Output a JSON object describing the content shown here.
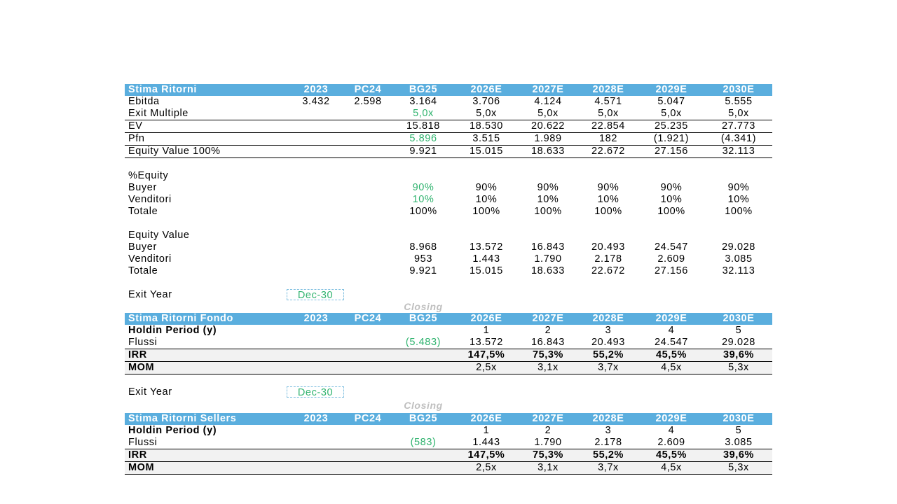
{
  "cols": [
    "2023",
    "PC24",
    "BG25",
    "2026E",
    "2027E",
    "2028E",
    "2029E",
    "2030E"
  ],
  "s1": {
    "title": "Stima Ritorni",
    "ebitda": {
      "label": "Ebitda",
      "v": [
        "3.432",
        "2.598",
        "3.164",
        "3.706",
        "4.124",
        "4.571",
        "5.047",
        "5.555"
      ]
    },
    "multiple": {
      "label": "Exit Multiple",
      "v": [
        "5,0x",
        "5,0x",
        "5,0x",
        "5,0x",
        "5,0x",
        "5,0x"
      ]
    },
    "ev": {
      "label": "EV",
      "v": [
        "15.818",
        "18.530",
        "20.622",
        "22.854",
        "25.235",
        "27.773"
      ]
    },
    "pfn": {
      "label": "Pfn",
      "v": [
        "5.896",
        "3.515",
        "1.989",
        "182",
        "(1.921)",
        "(4.341)"
      ]
    },
    "equity100": {
      "label": "Equity Value 100%",
      "v": [
        "9.921",
        "15.015",
        "18.633",
        "22.672",
        "27.156",
        "32.113"
      ]
    },
    "pct_title": "%Equity",
    "pct_buyer": {
      "label": "Buyer",
      "v": [
        "90%",
        "90%",
        "90%",
        "90%",
        "90%",
        "90%"
      ]
    },
    "pct_vend": {
      "label": "Venditori",
      "v": [
        "10%",
        "10%",
        "10%",
        "10%",
        "10%",
        "10%"
      ]
    },
    "pct_tot": {
      "label": "Totale",
      "v": [
        "100%",
        "100%",
        "100%",
        "100%",
        "100%",
        "100%"
      ]
    },
    "eq_title": "Equity Value",
    "eq_buyer": {
      "label": "Buyer",
      "v": [
        "8.968",
        "13.572",
        "16.843",
        "20.493",
        "24.547",
        "29.028"
      ]
    },
    "eq_vend": {
      "label": "Venditori",
      "v": [
        "953",
        "1.443",
        "1.790",
        "2.178",
        "2.609",
        "3.085"
      ]
    },
    "eq_tot": {
      "label": "Totale",
      "v": [
        "9.921",
        "15.015",
        "18.633",
        "22.672",
        "27.156",
        "32.113"
      ]
    }
  },
  "s2": {
    "exit_label": "Exit Year",
    "exit_value": "Dec-30",
    "closing": "Closing",
    "title": "Stima Ritorni Fondo",
    "holding": {
      "label": "Holdin Period (y)",
      "v": [
        "1",
        "2",
        "3",
        "4",
        "5"
      ]
    },
    "flussi": {
      "label": "Flussi",
      "v": [
        "(5.483)",
        "13.572",
        "16.843",
        "20.493",
        "24.547",
        "29.028"
      ]
    },
    "irr": {
      "label": "IRR",
      "v": [
        "147,5%",
        "75,3%",
        "55,2%",
        "45,5%",
        "39,6%"
      ]
    },
    "mom": {
      "label": "MOM",
      "v": [
        "2,5x",
        "3,1x",
        "3,7x",
        "4,5x",
        "5,3x"
      ]
    }
  },
  "s3": {
    "exit_label": "Exit Year",
    "exit_value": "Dec-30",
    "closing": "Closing",
    "title": "Stima Ritorni Sellers",
    "holding": {
      "label": "Holdin Period (y)",
      "v": [
        "1",
        "2",
        "3",
        "4",
        "5"
      ]
    },
    "flussi": {
      "label": "Flussi",
      "v": [
        "(583)",
        "1.443",
        "1.790",
        "2.178",
        "2.609",
        "3.085"
      ]
    },
    "irr": {
      "label": "IRR",
      "v": [
        "147,5%",
        "75,3%",
        "55,2%",
        "45,5%",
        "39,6%"
      ]
    },
    "mom": {
      "label": "MOM",
      "v": [
        "2,5x",
        "3,1x",
        "3,7x",
        "4,5x",
        "5,3x"
      ]
    }
  },
  "colors": {
    "header": "#5aaede",
    "green": "#2fb36e",
    "grey_row": "#f2f2f2"
  }
}
